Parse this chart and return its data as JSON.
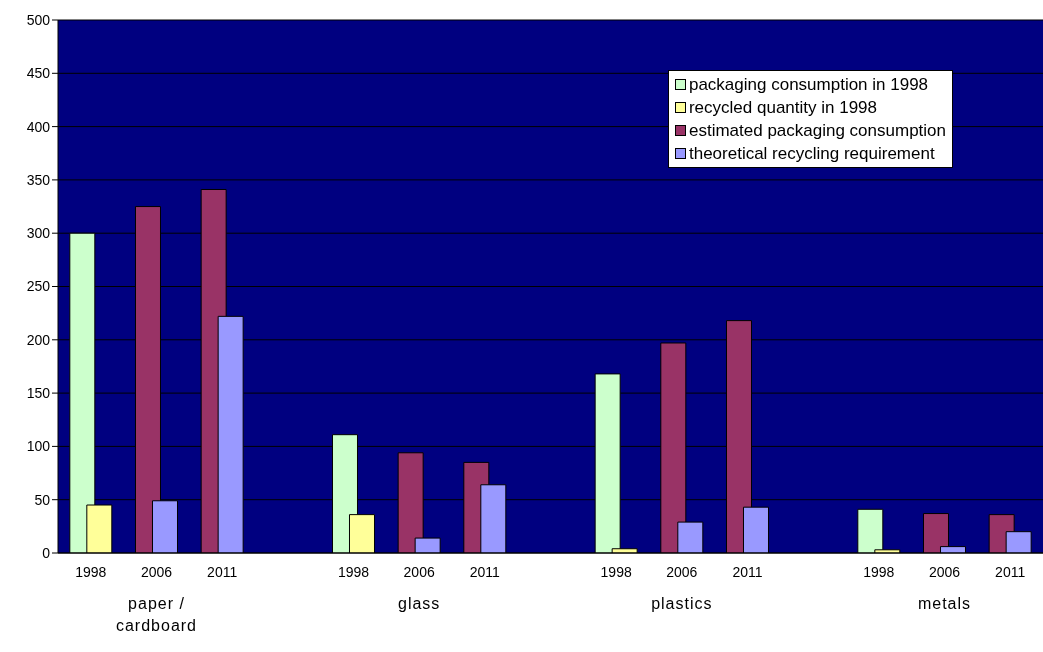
{
  "chart_data": {
    "type": "bar",
    "categories": [
      "1998",
      "2006",
      "2011",
      null,
      "1998",
      "2006",
      "2011",
      null,
      "1998",
      "2006",
      "2011",
      null,
      "1998",
      "2006",
      "2011"
    ],
    "series": [
      {
        "name": "packaging consumption in 1998",
        "color": "#ccffcc",
        "values": [
          300,
          null,
          null,
          null,
          111,
          null,
          null,
          null,
          168,
          null,
          null,
          null,
          41,
          null,
          null
        ]
      },
      {
        "name": "recycled quantity in 1998",
        "color": "#ffff99",
        "values": [
          45,
          null,
          null,
          null,
          36,
          null,
          null,
          null,
          4,
          null,
          null,
          null,
          3,
          null,
          null
        ]
      },
      {
        "name": "estimated packaging consumption",
        "color": "#993366",
        "values": [
          null,
          325,
          341,
          null,
          null,
          94,
          85,
          null,
          null,
          197,
          218,
          null,
          null,
          37,
          36
        ]
      },
      {
        "name": "theoretical recycling requirement",
        "color": "#9999ff",
        "values": [
          null,
          49,
          222,
          null,
          null,
          14,
          64,
          null,
          null,
          29,
          43,
          null,
          null,
          6,
          20
        ]
      }
    ],
    "annotations": [
      "paper / cardboard",
      "glass",
      "plastics",
      "metals"
    ],
    "ylim": [
      0,
      500
    ],
    "yticks": [
      0,
      50,
      100,
      150,
      200,
      250,
      300,
      350,
      400,
      450,
      500
    ],
    "grid": "y",
    "legend": "top right"
  }
}
